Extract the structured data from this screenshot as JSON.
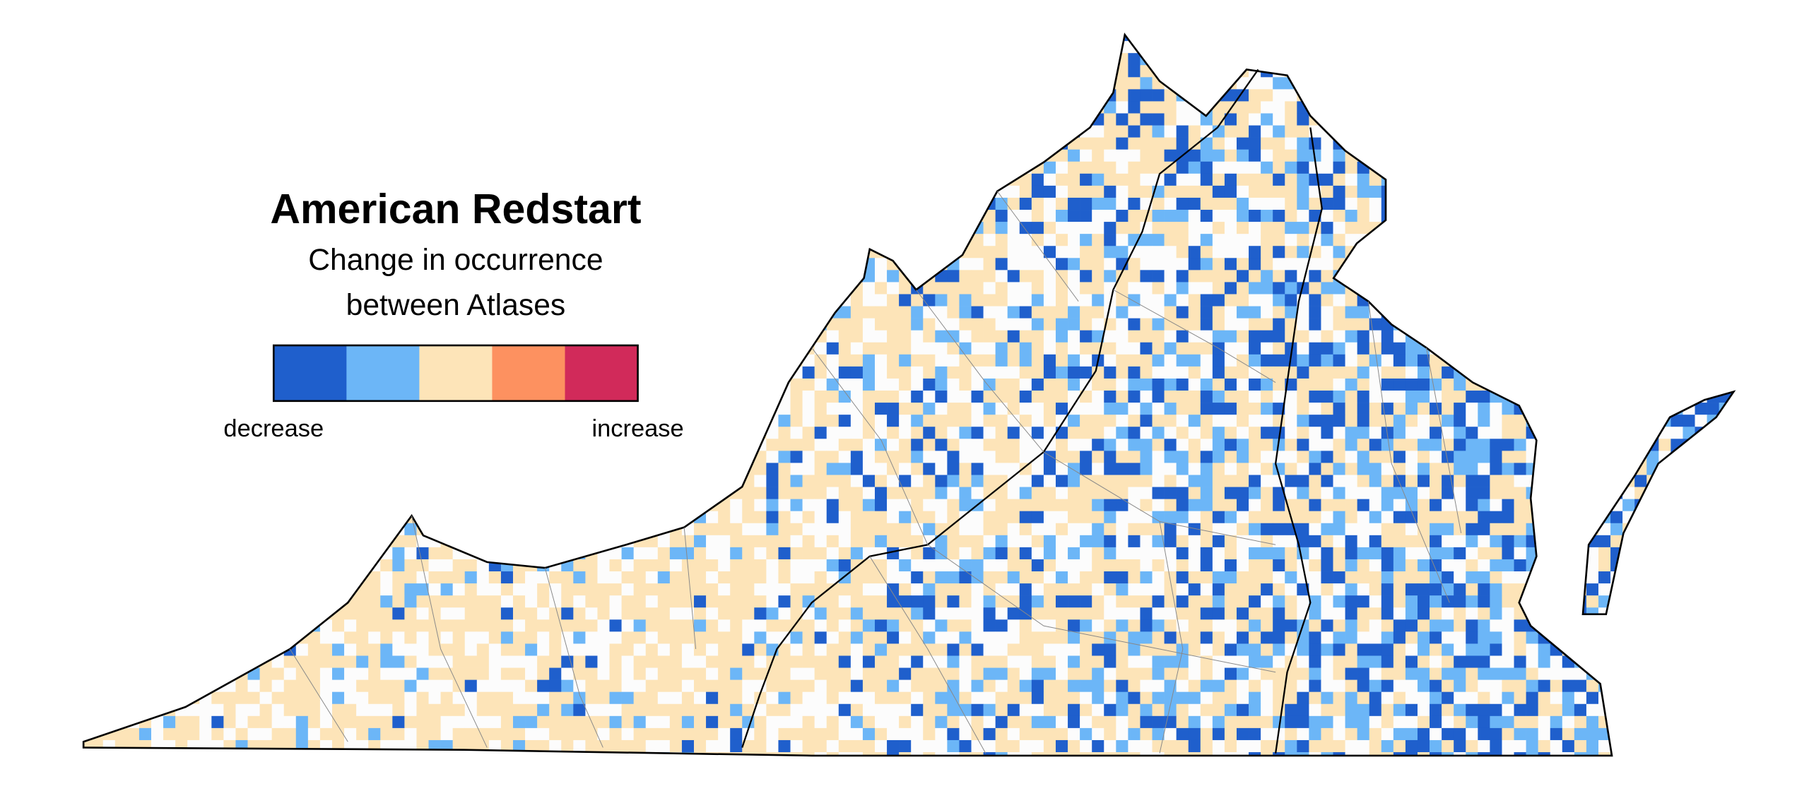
{
  "legend": {
    "title": "American Redstart",
    "subtitle_lines": [
      "Change in occurrence",
      "between Atlases"
    ],
    "colors": [
      "#1f5fcc",
      "#6cb6f7",
      "#fde4b8",
      "#fd9160",
      "#d12a5a"
    ],
    "low_label": "decrease",
    "high_label": "increase"
  }
}
